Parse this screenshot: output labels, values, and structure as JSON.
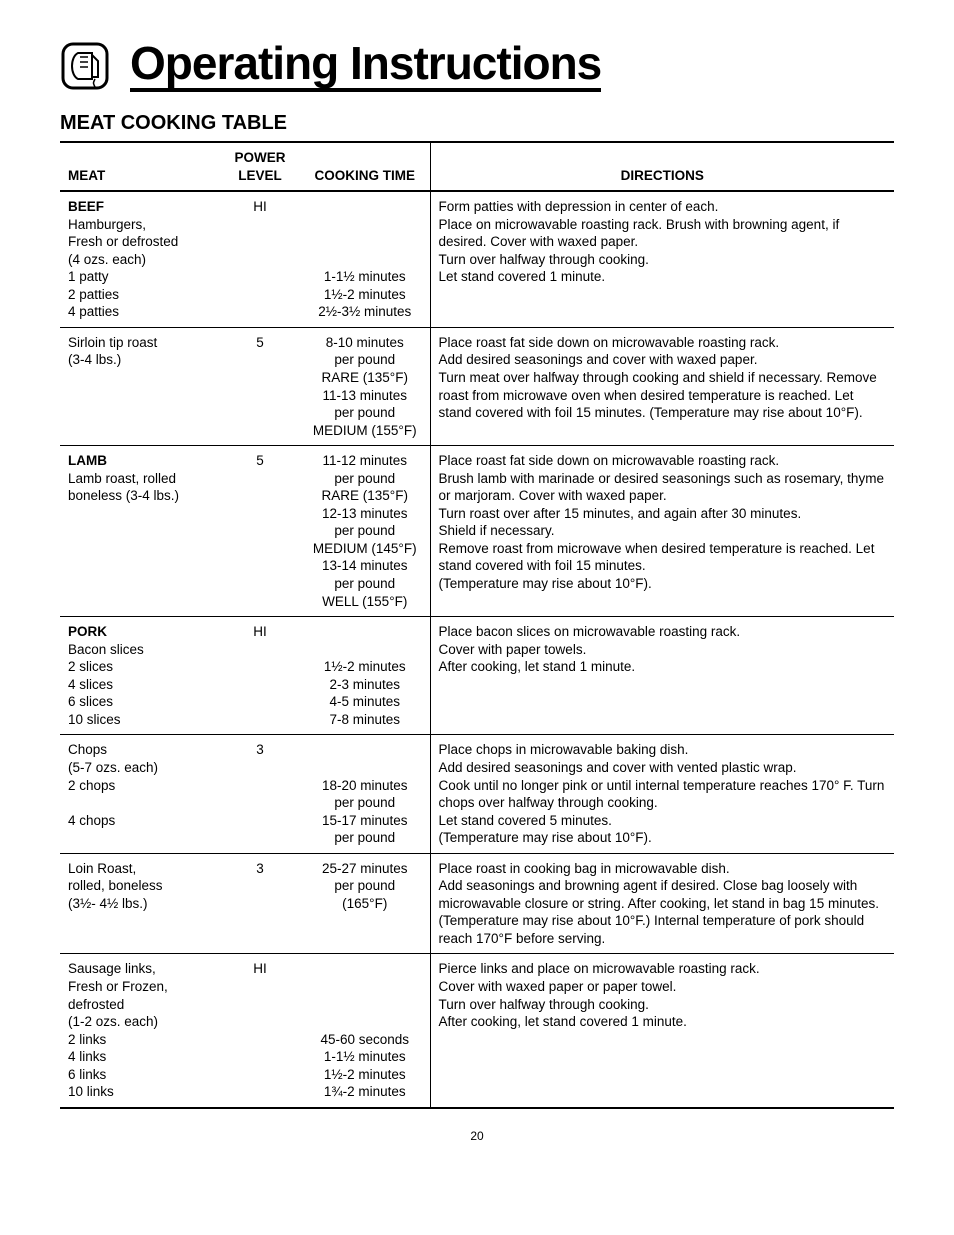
{
  "page": {
    "title": "Operating Instructions",
    "section_title": "MEAT COOKING TABLE",
    "page_number": "20"
  },
  "headers": {
    "meat": "MEAT",
    "power": "POWER LEVEL",
    "time": "COOKING TIME",
    "directions": "DIRECTIONS"
  },
  "rows": [
    {
      "meat_bold": "BEEF",
      "meat_lines": [
        "Hamburgers,",
        "Fresh or defrosted",
        "(4 ozs. each)",
        "1 patty",
        "2 patties",
        "4 patties"
      ],
      "power": "HI",
      "time_lines": [
        "",
        "",
        "",
        "",
        "1-1½ minutes",
        "1½-2 minutes",
        "2½-3½ minutes"
      ],
      "directions": [
        "Form patties with depression in center of each.",
        "Place on microwavable roasting rack. Brush with browning agent, if desired. Cover with waxed paper.",
        "Turn over halfway through cooking.",
        "Let stand covered 1 minute."
      ]
    },
    {
      "meat_bold": "",
      "meat_lines": [
        "Sirloin tip roast",
        "(3-4 lbs.)"
      ],
      "power": "5",
      "time_lines": [
        "8-10 minutes",
        "per pound",
        "RARE (135°F)",
        "11-13 minutes",
        "per pound",
        "MEDIUM (155°F)"
      ],
      "directions": [
        "Place roast fat side down on microwavable roasting rack.",
        "Add desired seasonings and cover with waxed paper.",
        "Turn meat over halfway through cooking and shield if necessary. Remove roast from microwave oven when desired temperature is reached. Let stand covered with foil 15 minutes. (Temperature may rise about 10°F)."
      ]
    },
    {
      "meat_bold": "LAMB",
      "meat_lines": [
        "Lamb roast, rolled",
        "boneless (3-4 lbs.)"
      ],
      "power": "5",
      "time_lines": [
        "11-12 minutes",
        "per pound",
        "RARE (135°F)",
        "12-13 minutes",
        "per pound",
        "MEDIUM (145°F)",
        "13-14 minutes",
        "per pound",
        "WELL (155°F)"
      ],
      "directions": [
        "Place roast fat side down on microwavable roasting rack.",
        "Brush lamb with marinade or desired seasonings such as rosemary, thyme or marjoram. Cover with waxed paper.",
        "Turn roast over after 15 minutes, and again after 30 minutes.",
        "Shield if necessary.",
        "Remove roast from microwave when desired temperature is reached. Let stand covered with foil 15 minutes.",
        "(Temperature may rise about 10°F)."
      ]
    },
    {
      "meat_bold": "PORK",
      "meat_lines": [
        "Bacon slices",
        "2 slices",
        "4 slices",
        "6 slices",
        "10 slices"
      ],
      "power": "HI",
      "time_lines": [
        "",
        "",
        "1½-2 minutes",
        "2-3 minutes",
        "4-5 minutes",
        "7-8 minutes"
      ],
      "directions": [
        "Place bacon slices on microwavable roasting rack.",
        "Cover with paper towels.",
        "After cooking, let stand 1 minute."
      ]
    },
    {
      "meat_bold": "",
      "meat_lines": [
        "Chops",
        "(5-7 ozs. each)",
        "2 chops",
        "",
        "4 chops"
      ],
      "power": "3",
      "time_lines": [
        "",
        "",
        "18-20 minutes",
        "per pound",
        "15-17 minutes",
        "per pound"
      ],
      "directions": [
        "Place chops in microwavable baking dish.",
        "Add desired seasonings and cover with vented plastic wrap.",
        "Cook until no longer pink or until internal temperature reaches 170° F. Turn chops over halfway through cooking.",
        "Let stand covered 5 minutes.",
        "(Temperature may rise about 10°F)."
      ]
    },
    {
      "meat_bold": "",
      "meat_lines": [
        "Loin Roast,",
        "rolled, boneless",
        "(3½- 4½ lbs.)"
      ],
      "power": "3",
      "time_lines": [
        "25-27 minutes",
        "per pound",
        "(165°F)"
      ],
      "directions": [
        "Place roast in cooking bag in microwavable dish.",
        "Add seasonings and browning agent if desired. Close bag loosely with microwavable closure or string. After cooking, let stand in bag 15 minutes. (Temperature may rise about 10°F.) Internal temperature of pork should reach 170°F before serving."
      ]
    },
    {
      "meat_bold": "",
      "meat_lines": [
        "Sausage links,",
        "Fresh or Frozen,",
        "defrosted",
        "(1-2 ozs. each)",
        "2 links",
        "4 links",
        "6 links",
        "10 links"
      ],
      "power": "HI",
      "time_lines": [
        "",
        "",
        "",
        "",
        "45-60 seconds",
        "1-1½ minutes",
        "1½-2 minutes",
        "1¾-2 minutes"
      ],
      "directions": [
        "Pierce links and place on microwavable roasting rack.",
        "Cover with waxed paper or paper towel.",
        "Turn over halfway through cooking.",
        "After cooking, let stand covered 1 minute."
      ]
    }
  ],
  "colors": {
    "text": "#000000",
    "background": "#ffffff",
    "rule": "#000000"
  }
}
